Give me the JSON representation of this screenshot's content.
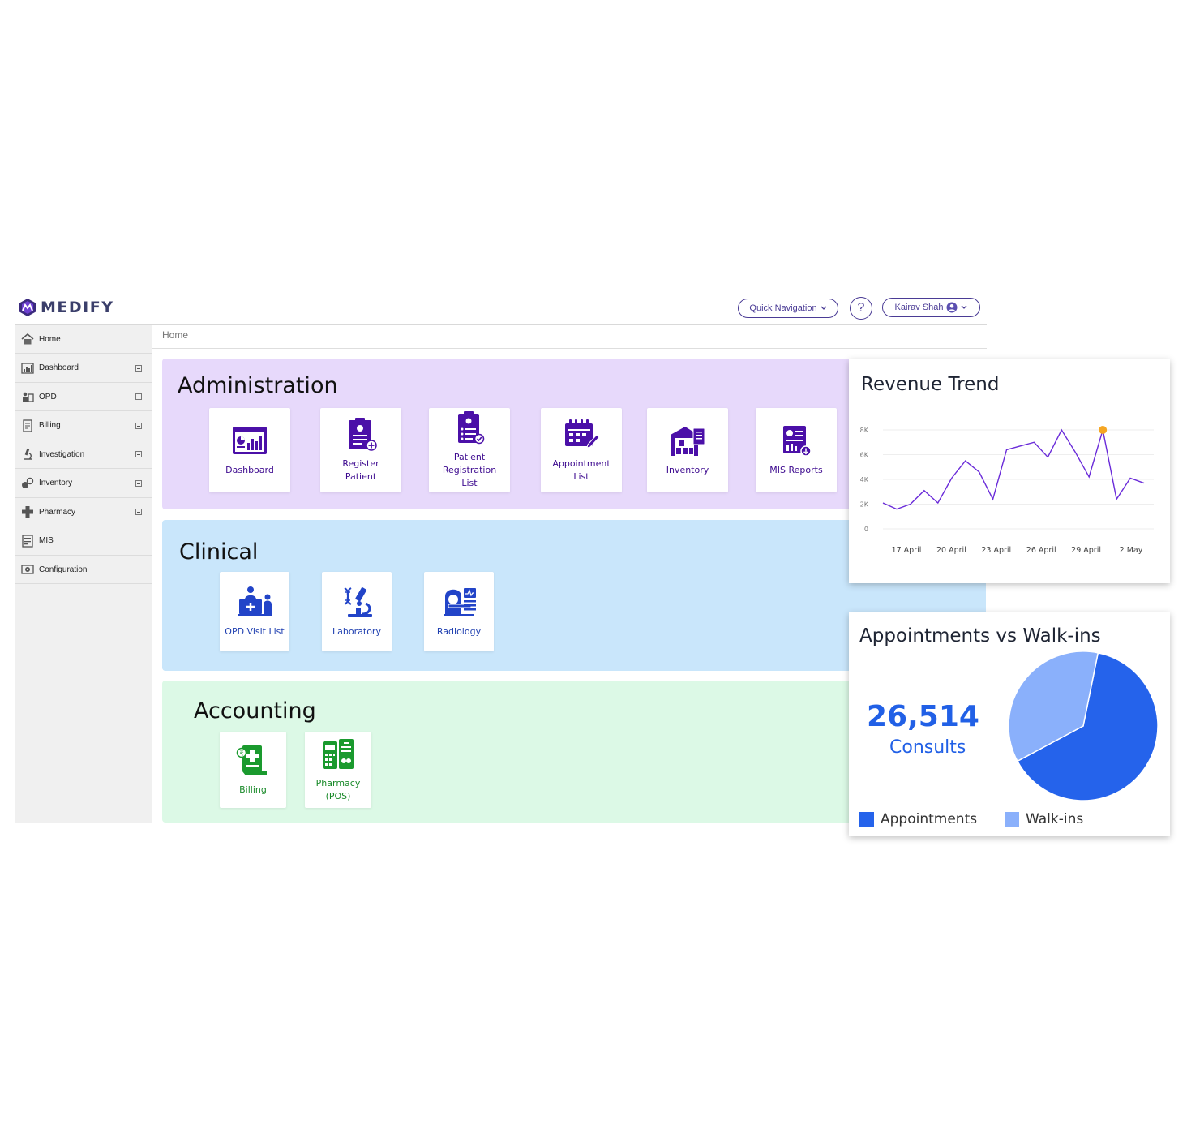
{
  "app": {
    "name": "MEDIFY"
  },
  "header": {
    "quick_nav_label": "Quick Navigation",
    "help_label": "?",
    "user_name": "Kairav Shah"
  },
  "sidebar": {
    "items": [
      {
        "label": "Home",
        "icon": "home-icon",
        "expandable": false
      },
      {
        "label": "Dashboard",
        "icon": "dashboard-icon",
        "expandable": true
      },
      {
        "label": "OPD",
        "icon": "opd-icon",
        "expandable": true
      },
      {
        "label": "Billing",
        "icon": "billing-icon",
        "expandable": true
      },
      {
        "label": "Investigation",
        "icon": "microscope-icon",
        "expandable": true
      },
      {
        "label": "Inventory",
        "icon": "inventory-icon",
        "expandable": true
      },
      {
        "label": "Pharmacy",
        "icon": "pharmacy-icon",
        "expandable": true
      },
      {
        "label": "MIS",
        "icon": "mis-icon",
        "expandable": false
      },
      {
        "label": "Configuration",
        "icon": "configuration-icon",
        "expandable": false
      }
    ]
  },
  "breadcrumb": "Home",
  "sections": {
    "administration": {
      "title": "Administration",
      "tiles": [
        {
          "label": "Dashboard"
        },
        {
          "label": "Register Patient"
        },
        {
          "label": "Patient Registration List"
        },
        {
          "label": "Appointment List"
        },
        {
          "label": "Inventory"
        },
        {
          "label": "MIS Reports"
        }
      ]
    },
    "clinical": {
      "title": "Clinical",
      "tiles": [
        {
          "label": "OPD Visit List"
        },
        {
          "label": "Laboratory"
        },
        {
          "label": "Radiology"
        }
      ]
    },
    "accounting": {
      "title": "Accounting",
      "tiles": [
        {
          "label": "Billing"
        },
        {
          "label": "Pharmacy (POS)"
        }
      ]
    }
  },
  "colors": {
    "purple": "#4b10a8",
    "blue": "#2244c8",
    "green": "#1a9a2e",
    "chart_line": "#6a2bd9",
    "highlight": "#f5a623",
    "appointments": "#2563eb",
    "walkins": "#8ab0fb"
  },
  "chart_data": [
    {
      "type": "line",
      "title": "Revenue Trend",
      "y_ticks": [
        "8K",
        "6K",
        "4K",
        "2K",
        "0"
      ],
      "x_tick_labels": [
        "17 April",
        "20 April",
        "23 April",
        "26 April",
        "29 April",
        "2 May"
      ],
      "ylim": [
        0,
        8000
      ],
      "values": [
        2100,
        1600,
        2000,
        3100,
        2100,
        4100,
        5500,
        4600,
        2400,
        6400,
        6700,
        7000,
        5800,
        8000,
        6200,
        4200,
        8000,
        2400,
        4100,
        3700
      ],
      "highlight_index": 16
    },
    {
      "type": "pie",
      "title": "Appointments vs Walk-ins",
      "kpi_value": "26,514",
      "kpi_unit": "Consults",
      "slices": [
        {
          "name": "Appointments",
          "value": 64
        },
        {
          "name": "Walk-ins",
          "value": 36
        }
      ]
    }
  ]
}
